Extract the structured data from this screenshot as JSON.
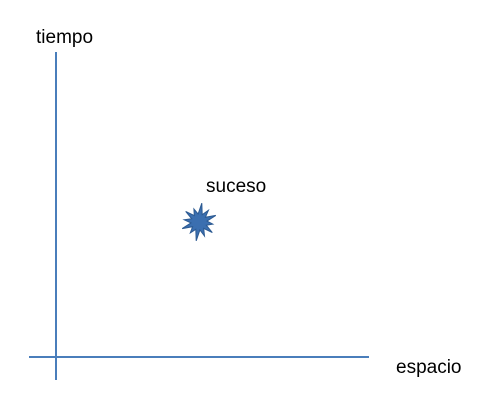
{
  "diagram": {
    "time_axis_label": "tiempo",
    "space_axis_label": "espacio",
    "event_label": "suceso",
    "event_icon": "star-burst-icon",
    "colors": {
      "axis": "#4a7ebb",
      "event_fill": "#3b6fb0",
      "event_stroke": "#2c5a92",
      "text": "#000000"
    }
  }
}
